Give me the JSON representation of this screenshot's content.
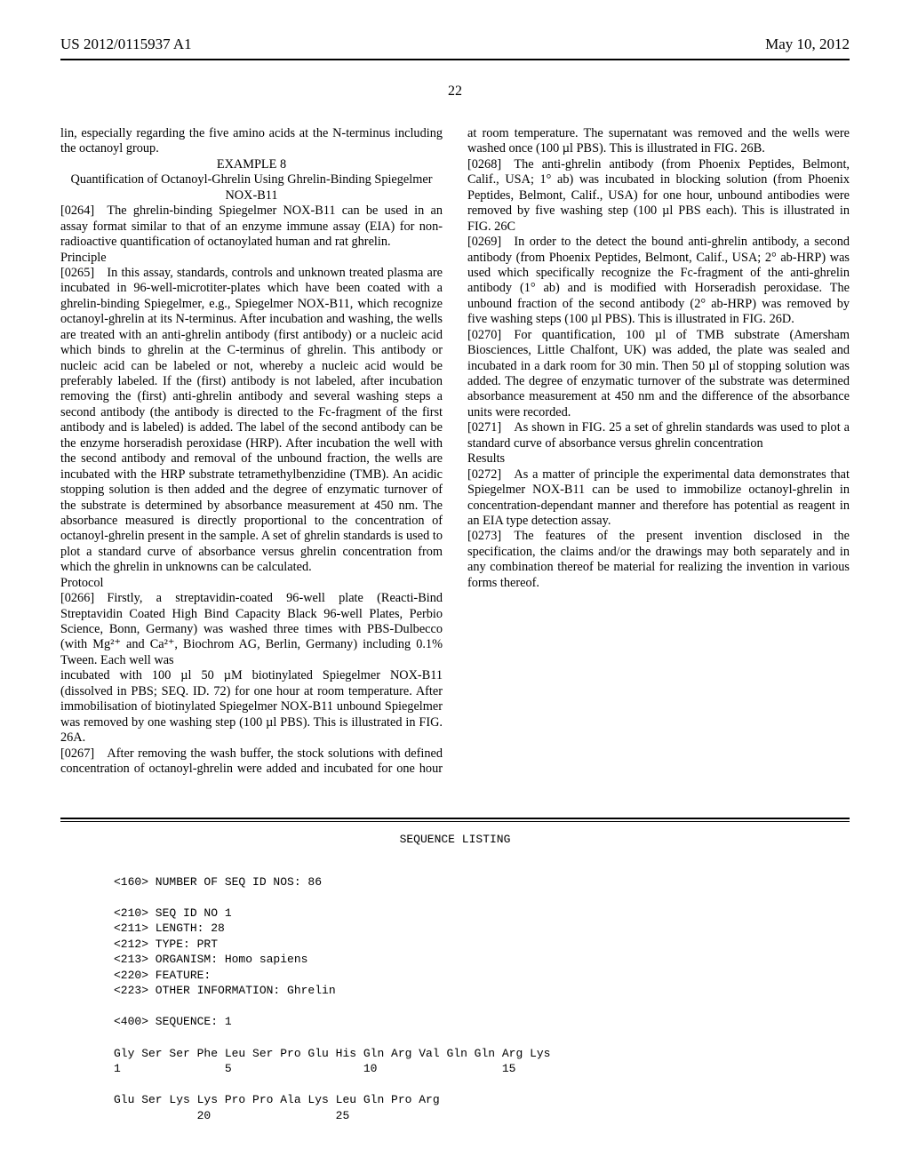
{
  "header": {
    "pub_number": "US 2012/0115937 A1",
    "pub_date": "May 10, 2012",
    "page_number": "22"
  },
  "col1": {
    "p0": "lin, especially regarding the five amino acids at the N-terminus including the octanoyl group.",
    "example_label": "EXAMPLE 8",
    "example_title": "Quantification of Octanoyl-Ghrelin Using Ghrelin-Binding Spiegelmer NOX-B11",
    "p0264": "[0264] The ghrelin-binding Spiegelmer NOX-B11 can be used in an assay format similar to that of an enzyme immune assay (EIA) for non-radioactive quantification of octanoylated human and rat ghrelin.",
    "principle_head": "Principle",
    "p0265": "[0265] In this assay, standards, controls and unknown treated plasma are incubated in 96-well-microtiter-plates which have been coated with a ghrelin-binding Spiegelmer, e.g., Spiegelmer NOX-B11, which recognize octanoyl-ghrelin at its N-terminus. After incubation and washing, the wells are treated with an anti-ghrelin antibody (first antibody) or a nucleic acid which binds to ghrelin at the C-terminus of ghrelin. This antibody or nucleic acid can be labeled or not, whereby a nucleic acid would be preferably labeled. If the (first) antibody is not labeled, after incubation removing the (first) anti-ghrelin antibody and several washing steps a second antibody (the antibody is directed to the Fc-fragment of the first antibody and is labeled) is added. The label of the second antibody can be the enzyme horseradish peroxidase (HRP). After incubation the well with the second antibody and removal of the unbound fraction, the wells are incubated with the HRP substrate tetramethylbenzidine (TMB). An acidic stopping solution is then added and the degree of enzymatic turnover of the substrate is determined by absorbance measurement at 450 nm. The absorbance measured is directly proportional to the concentration of octanoyl-ghrelin present in the sample. A set of ghrelin standards is used to plot a standard curve of absorbance versus ghrelin concentration from which the ghrelin in unknowns can be calculated.",
    "protocol_head": "Protocol",
    "p0266": "[0266] Firstly, a streptavidin-coated 96-well plate (Reacti-Bind Streptavidin Coated High Bind Capacity Black 96-well Plates, Perbio Science, Bonn, Germany) was washed three times with PBS-Dulbecco (with Mg²⁺ and Ca²⁺, Biochrom AG, Berlin, Germany) including 0.1% Tween. Each well was"
  },
  "col2": {
    "p0266b": "incubated with 100 µl 50 µM biotinylated Spiegelmer NOX-B11 (dissolved in PBS; SEQ. ID. 72) for one hour at room temperature. After immobilisation of biotinylated Spiegelmer NOX-B11 unbound Spiegelmer was removed by one washing step (100 µl PBS). This is illustrated in FIG. 26A.",
    "p0267": "[0267] After removing the wash buffer, the stock solutions with defined concentration of octanoyl-ghrelin were added and incubated for one hour at room temperature. The supernatant was removed and the wells were washed once (100 µl PBS). This is illustrated in FIG. 26B.",
    "p0268": "[0268] The anti-ghrelin antibody (from Phoenix Peptides, Belmont, Calif., USA; 1° ab) was incubated in blocking solution (from Phoenix Peptides, Belmont, Calif., USA) for one hour, unbound antibodies were removed by five washing step (100 µl PBS each). This is illustrated in FIG. 26C",
    "p0269": "[0269] In order to the detect the bound anti-ghrelin antibody, a second antibody (from Phoenix Peptides, Belmont, Calif., USA; 2° ab-HRP) was used which specifically recognize the Fc-fragment of the anti-ghrelin antibody (1° ab) and is modified with Horseradish peroxidase. The unbound fraction of the second antibody (2° ab-HRP) was removed by five washing steps (100 µl PBS). This is illustrated in FIG. 26D.",
    "p0270": "[0270] For quantification, 100 µl of TMB substrate (Amersham Biosciences, Little Chalfont, UK) was added, the plate was sealed and incubated in a dark room for 30 min. Then 50 µl of stopping solution was added. The degree of enzymatic turnover of the substrate was determined absorbance measurement at 450 nm and the difference of the absorbance units were recorded.",
    "p0271": "[0271] As shown in FIG. 25 a set of ghrelin standards was used to plot a standard curve of absorbance versus ghrelin concentration",
    "results_head": "Results",
    "p0272": "[0272] As a matter of principle the experimental data demonstrates that Spiegelmer NOX-B11 can be used to immobilize octanoyl-ghrelin in concentration-dependant manner and therefore has potential as reagent in an EIA type detection assay.",
    "p0273": "[0273] The features of the present invention disclosed in the specification, the claims and/or the drawings may both separately and in any combination thereof be material for realizing the invention in various forms thereof."
  },
  "sequence_listing": {
    "title": "SEQUENCE LISTING",
    "l160": "<160> NUMBER OF SEQ ID NOS: 86",
    "l210": "<210> SEQ ID NO 1",
    "l211": "<211> LENGTH: 28",
    "l212": "<212> TYPE: PRT",
    "l213": "<213> ORGANISM: Homo sapiens",
    "l220": "<220> FEATURE:",
    "l223": "<223> OTHER INFORMATION: Ghrelin",
    "l400": "<400> SEQUENCE: 1",
    "row1": "Gly Ser Ser Phe Leu Ser Pro Glu His Gln Arg Val Gln Gln Arg Lys",
    "row1n": "1               5                   10                  15",
    "row2": "Glu Ser Lys Lys Pro Pro Ala Lys Leu Gln Pro Arg",
    "row2n": "            20                  25"
  }
}
